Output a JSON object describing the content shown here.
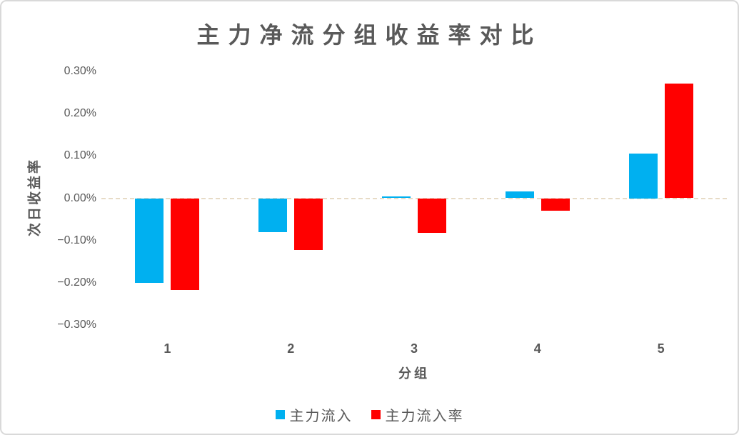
{
  "frame": {
    "background": "#ffffff",
    "border_color": "#d9d9d9"
  },
  "chart_data": {
    "type": "bar",
    "title": "主力净流分组收益率对比",
    "xlabel": "分组",
    "ylabel": "次日收益率",
    "units": "%",
    "categories": [
      "1",
      "2",
      "3",
      "4",
      "5"
    ],
    "series": [
      {
        "name": "主力流入",
        "color": "#00b0f0",
        "values_pct": [
          -0.2,
          -0.08,
          0.004,
          0.016,
          0.105
        ]
      },
      {
        "name": "主力流入率",
        "color": "#ff0000",
        "values_pct": [
          -0.218,
          -0.122,
          -0.082,
          -0.03,
          0.272
        ]
      }
    ],
    "ylim": [
      -0.3,
      0.3
    ],
    "yticks": [
      0.3,
      0.2,
      0.1,
      0,
      -0.1,
      -0.2,
      -0.3
    ],
    "ytick_labels": [
      "0.30%",
      "0.20%",
      "0.10%",
      "0.00%",
      "−0.10%",
      "−0.20%",
      "−0.30%"
    ],
    "grid": "zero-line-only",
    "zero_line_color": "#e7dbc6",
    "legend_position": "bottom",
    "text_color": "#595959"
  }
}
